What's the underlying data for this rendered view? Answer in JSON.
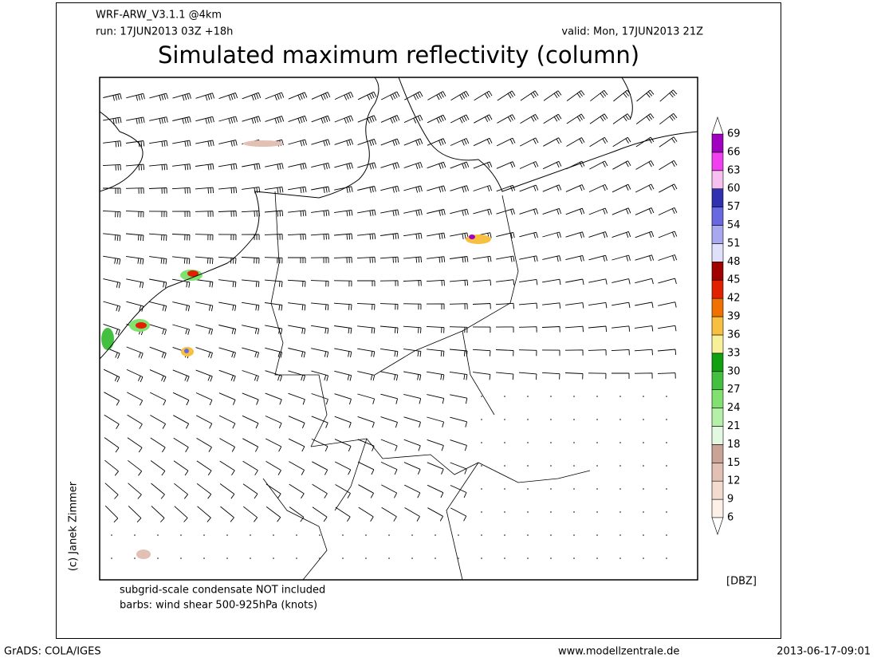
{
  "header": {
    "model": "WRF-ARW_V3.1.1 @4km",
    "run": "run: 17JUN2013 03Z +18h",
    "valid": "valid: Mon, 17JUN2013 21Z",
    "title": "Simulated maximum reflectivity (column)"
  },
  "colorbar": {
    "unit": "[DBZ]",
    "levels": [
      6,
      9,
      12,
      15,
      18,
      21,
      24,
      27,
      30,
      33,
      36,
      39,
      42,
      45,
      48,
      51,
      54,
      57,
      60,
      63,
      66,
      69
    ],
    "colors": [
      "#fdf0e6",
      "#f3dccf",
      "#e2c0b4",
      "#c9a396",
      "#e2f8e0",
      "#b4f0a8",
      "#80e070",
      "#44c040",
      "#10a010",
      "#f8f098",
      "#f8c040",
      "#f07000",
      "#e02000",
      "#a00000",
      "#e0e0fb",
      "#a8a8f0",
      "#6868e0",
      "#3030b0",
      "#f8c0f0",
      "#f040f0",
      "#a000c0"
    ]
  },
  "notes": [
    "subgrid-scale condensate NOT included",
    "barbs: wind shear 500-925hPa (knots)"
  ],
  "copyright": "(c) Janek Zimmer",
  "footer": {
    "left": "GrADS: COLA/IGES",
    "center": "www.modellzentrale.de",
    "right": "2013-06-17-09:01"
  }
}
